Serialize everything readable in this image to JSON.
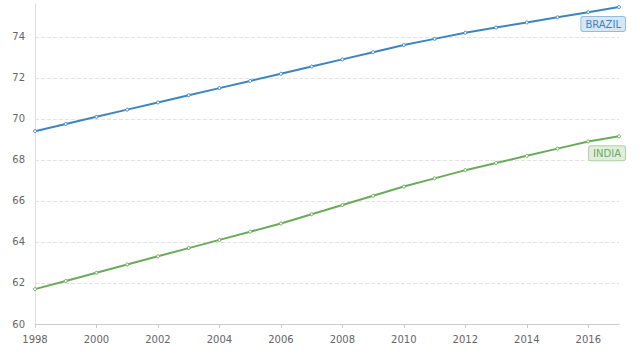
{
  "chart_data": {
    "type": "line",
    "x": [
      1998,
      1999,
      2000,
      2001,
      2002,
      2003,
      2004,
      2005,
      2006,
      2007,
      2008,
      2009,
      2010,
      2011,
      2012,
      2013,
      2014,
      2015,
      2016,
      2017
    ],
    "series": [
      {
        "name": "BRAZIL",
        "color": "#3d85c0",
        "marker": "circle",
        "values": [
          69.4,
          69.75,
          70.1,
          70.45,
          70.8,
          71.15,
          71.5,
          71.85,
          72.2,
          72.55,
          72.9,
          73.25,
          73.6,
          73.9,
          74.2,
          74.45,
          74.7,
          74.95,
          75.2,
          75.45
        ]
      },
      {
        "name": "INDIA",
        "color": "#6aab5b",
        "marker": "circle",
        "values": [
          61.7,
          62.1,
          62.5,
          62.9,
          63.3,
          63.7,
          64.1,
          64.5,
          64.9,
          65.35,
          65.8,
          66.25,
          66.7,
          67.1,
          67.5,
          67.85,
          68.2,
          68.55,
          68.9,
          69.15
        ]
      }
    ],
    "xlim": [
      1998,
      2017
    ],
    "xticks": [
      1998,
      2000,
      2002,
      2004,
      2006,
      2008,
      2010,
      2012,
      2014,
      2016
    ],
    "ylim": [
      60,
      75.6
    ],
    "yticks": [
      60,
      62,
      64,
      66,
      68,
      70,
      72,
      74
    ],
    "grid": true
  }
}
